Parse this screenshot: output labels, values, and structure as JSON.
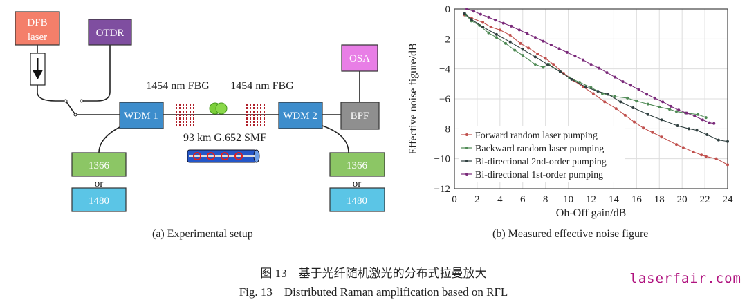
{
  "setup": {
    "dfb_laser": [
      "DFB",
      "laser"
    ],
    "otdr": "OTDR",
    "osa": "OSA",
    "bpf": "BPF",
    "wdm1": "WDM 1",
    "wdm2": "WDM 2",
    "fbg_left": "1454 nm FBG",
    "fbg_right": "1454 nm FBG",
    "fiber": "93 km G.652 SMF",
    "pump_left": {
      "a": "1366",
      "or": "or",
      "b": "1480"
    },
    "pump_right": {
      "a": "1366",
      "or": "or",
      "b": "1480"
    },
    "colors": {
      "dfb": "#f47f6a",
      "otdr": "#7f4ea0",
      "osa": "#e87ee6",
      "bpf": "#8f8f8f",
      "wdm": "#3d8dcc",
      "pump1366": "#8cc665",
      "pump1480": "#5bc5e6",
      "fbg": "#b0202a"
    }
  },
  "captions": {
    "a": "(a) Experimental setup",
    "b": "(b) Measured effective noise figure",
    "figure_cn": "图 13　基于光纤随机激光的分布式拉曼放大",
    "figure_en": "Fig. 13　Distributed Raman amplification based on RFL"
  },
  "watermark": "laserfair.com",
  "chart_data": {
    "type": "line",
    "xlabel": "Oh-Off gain/dB",
    "ylabel": "Effective noise figure/dB",
    "xlim": [
      0,
      24
    ],
    "ylim": [
      -12,
      0
    ],
    "xticks": [
      "0",
      "2",
      "4",
      "6",
      "8",
      "10",
      "12",
      "14",
      "16",
      "18",
      "20",
      "22",
      "24"
    ],
    "yticks": [
      "0",
      "−2",
      "−4",
      "−6",
      "−8",
      "−10",
      "−12"
    ],
    "grid": true,
    "legend_position": "bottom-left",
    "series": [
      {
        "name": "Forward random laser pumping",
        "color": "#c0504d",
        "x": [
          0.9,
          1.5,
          2.5,
          3.2,
          4,
          4.9,
          5.8,
          6.5,
          7.3,
          8,
          8.7,
          9.6,
          10.5,
          11.3,
          12.2,
          13.2,
          14.2,
          15,
          15.8,
          16.6,
          17.4,
          18.2,
          19.5,
          20.1,
          21,
          21.7,
          22.1,
          23,
          24
        ],
        "y": [
          -0.4,
          -0.6,
          -0.9,
          -1.2,
          -1.4,
          -1.75,
          -2.3,
          -2.6,
          -3.0,
          -3.3,
          -3.7,
          -4.3,
          -4.8,
          -5.2,
          -5.65,
          -6.2,
          -6.65,
          -7.1,
          -7.55,
          -7.95,
          -8.25,
          -8.55,
          -9.05,
          -9.25,
          -9.55,
          -9.75,
          -9.85,
          -10.0,
          -10.4
        ]
      },
      {
        "name": "Backward random laser pumping",
        "color": "#4f8a55",
        "x": [
          1,
          1.5,
          2.2,
          3,
          3.7,
          4.5,
          5.3,
          6,
          7.1,
          7.8,
          8.3,
          9.3,
          10.1,
          11,
          12,
          13,
          14.1,
          15.2,
          16,
          17,
          18,
          18.9,
          19.5,
          20.3,
          21.4,
          22.1
        ],
        "y": [
          -0.4,
          -0.8,
          -1.1,
          -1.6,
          -1.9,
          -2.3,
          -2.75,
          -3.1,
          -3.7,
          -3.9,
          -3.7,
          -4.2,
          -4.6,
          -4.9,
          -5.25,
          -5.65,
          -5.85,
          -5.95,
          -6.15,
          -6.35,
          -6.55,
          -6.7,
          -6.85,
          -6.95,
          -7.05,
          -7.25
        ]
      },
      {
        "name": "Bi-directional 2nd-order pumping",
        "color": "#2f3f3f",
        "x": [
          0.9,
          1.5,
          2.5,
          3.7,
          4.9,
          6,
          7.1,
          8.2,
          9.3,
          10.3,
          11.5,
          12.6,
          13.5,
          14.6,
          15.7,
          17,
          18.2,
          19.6,
          20.6,
          21.3,
          22.2,
          23.2,
          24
        ],
        "y": [
          -0.3,
          -0.7,
          -1.2,
          -1.7,
          -2.2,
          -2.7,
          -3.2,
          -3.7,
          -4.2,
          -4.7,
          -5.2,
          -5.5,
          -5.7,
          -6.2,
          -6.6,
          -7.05,
          -7.4,
          -7.8,
          -8.0,
          -8.1,
          -8.4,
          -8.75,
          -8.85
        ]
      },
      {
        "name": "Bi-directional 1st-order pumping",
        "color": "#7a2a7a",
        "x": [
          1.1,
          1.7,
          2.3,
          3,
          3.6,
          4.3,
          5,
          5.7,
          6.4,
          7.1,
          7.8,
          8.5,
          9.2,
          9.9,
          10.6,
          11.3,
          12,
          12.7,
          13.4,
          14.1,
          14.8,
          15.5,
          16.2,
          16.9,
          17.6,
          18.3,
          19,
          19.7,
          20.4,
          21.1,
          21.8,
          22.4,
          22.8
        ],
        "y": [
          0,
          -0.15,
          -0.35,
          -0.55,
          -0.75,
          -0.95,
          -1.15,
          -1.4,
          -1.65,
          -1.9,
          -2.15,
          -2.4,
          -2.65,
          -2.9,
          -3.15,
          -3.4,
          -3.7,
          -3.95,
          -4.25,
          -4.55,
          -4.85,
          -5.1,
          -5.4,
          -5.7,
          -5.95,
          -6.2,
          -6.5,
          -6.75,
          -6.95,
          -7.15,
          -7.4,
          -7.6,
          -7.65
        ]
      }
    ]
  }
}
